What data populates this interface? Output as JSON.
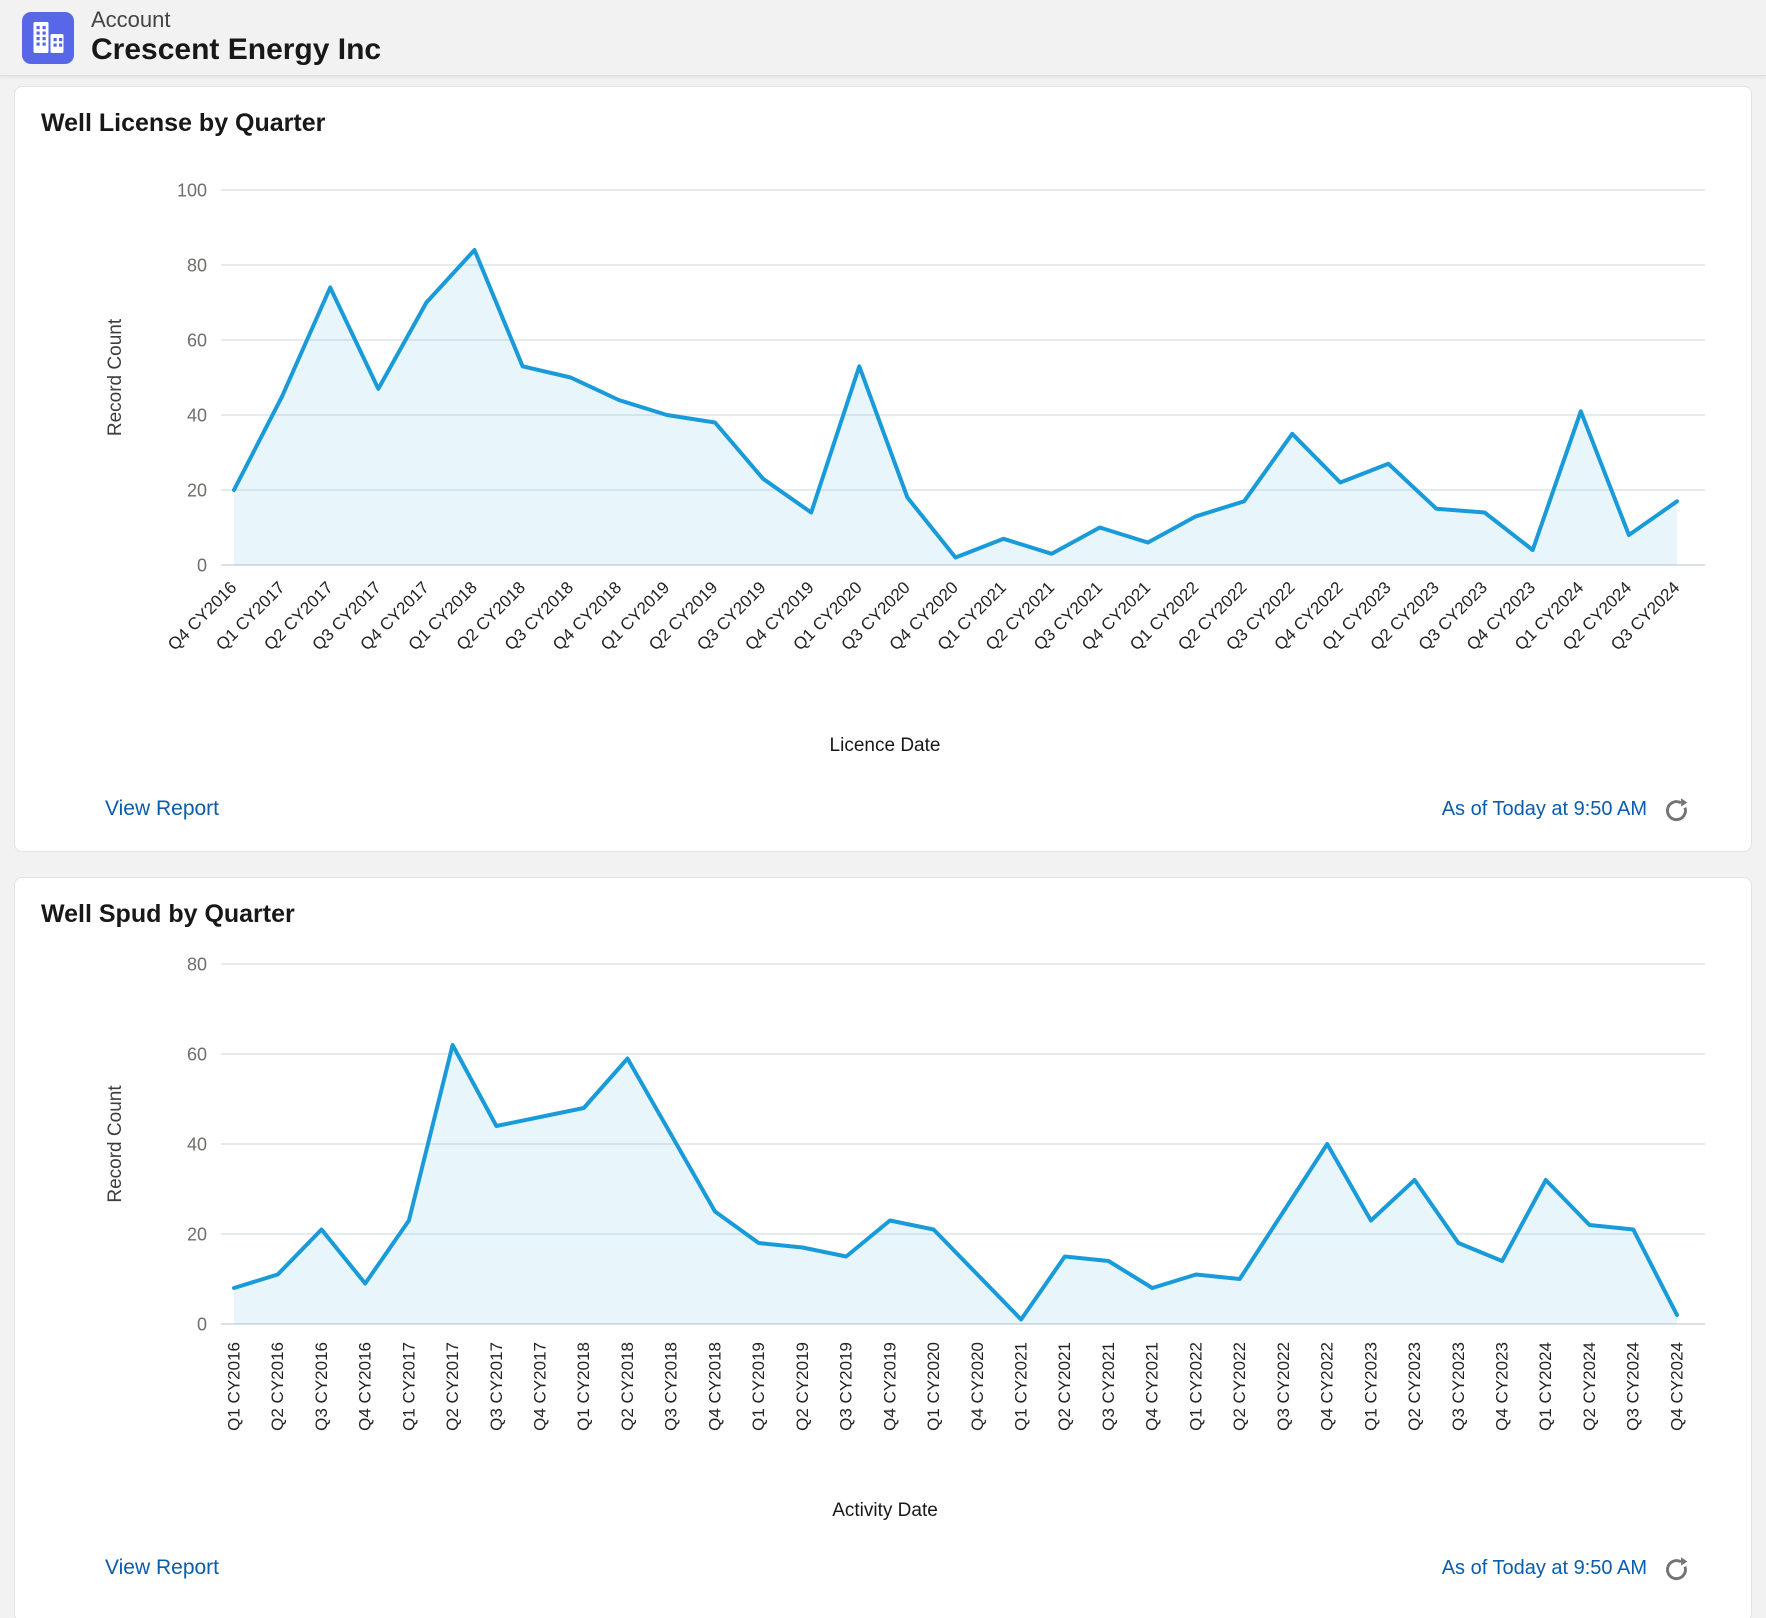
{
  "header": {
    "entity_label": "Account",
    "record_name": "Crescent Energy Inc",
    "icon": "building-icon",
    "icon_color": "#5867e8"
  },
  "cards": [
    {
      "view_report_label": "View Report",
      "as_of_text": "As of Today at 9:50 AM",
      "refresh_icon": "refresh-icon"
    },
    {
      "view_report_label": "View Report",
      "as_of_text": "As of Today at 9:50 AM",
      "refresh_icon": "refresh-icon"
    }
  ],
  "colors": {
    "line": "#1a9bd9",
    "fill": "rgba(26,155,217,0.10)",
    "link": "#0b5cab",
    "grid": "#e7ebee",
    "baseline": "#d9e1e7"
  },
  "chart_data": [
    {
      "type": "area",
      "title": "Well License by Quarter",
      "ylabel": "Record Count",
      "xlabel": "Licence Date",
      "ylim": [
        0,
        100
      ],
      "yticks": [
        0,
        20,
        40,
        60,
        80,
        100
      ],
      "grid": true,
      "legend": false,
      "x_label_rotation": -45,
      "line_color": "#1a9bd9",
      "fill_color": "rgba(26,155,217,0.10)",
      "x": [
        "Q4 CY2016",
        "Q1 CY2017",
        "Q2 CY2017",
        "Q3 CY2017",
        "Q4 CY2017",
        "Q1 CY2018",
        "Q2 CY2018",
        "Q3 CY2018",
        "Q4 CY2018",
        "Q1 CY2019",
        "Q2 CY2019",
        "Q3 CY2019",
        "Q4 CY2019",
        "Q1 CY2020",
        "Q3 CY2020",
        "Q4 CY2020",
        "Q1 CY2021",
        "Q2 CY2021",
        "Q3 CY2021",
        "Q4 CY2021",
        "Q1 CY2022",
        "Q2 CY2022",
        "Q3 CY2022",
        "Q4 CY2022",
        "Q1 CY2023",
        "Q2 CY2023",
        "Q3 CY2023",
        "Q4 CY2023",
        "Q1 CY2024",
        "Q2 CY2024",
        "Q3 CY2024"
      ],
      "values": [
        20,
        45,
        74,
        47,
        70,
        84,
        53,
        50,
        44,
        40,
        38,
        23,
        14,
        53,
        18,
        2,
        7,
        3,
        10,
        6,
        13,
        17,
        35,
        22,
        27,
        15,
        14,
        4,
        41,
        8,
        17
      ]
    },
    {
      "type": "area",
      "title": "Well Spud by Quarter",
      "ylabel": "Record Count",
      "xlabel": "Activity Date",
      "ylim": [
        0,
        80
      ],
      "yticks": [
        0,
        20,
        40,
        60,
        80
      ],
      "grid": true,
      "legend": false,
      "x_label_rotation": -90,
      "line_color": "#1a9bd9",
      "fill_color": "rgba(26,155,217,0.10)",
      "x": [
        "Q1 CY2016",
        "Q2 CY2016",
        "Q3 CY2016",
        "Q4 CY2016",
        "Q1 CY2017",
        "Q2 CY2017",
        "Q3 CY2017",
        "Q4 CY2017",
        "Q1 CY2018",
        "Q2 CY2018",
        "Q3 CY2018",
        "Q4 CY2018",
        "Q1 CY2019",
        "Q2 CY2019",
        "Q3 CY2019",
        "Q4 CY2019",
        "Q1 CY2020",
        "Q4 CY2020",
        "Q1 CY2021",
        "Q2 CY2021",
        "Q3 CY2021",
        "Q4 CY2021",
        "Q1 CY2022",
        "Q2 CY2022",
        "Q3 CY2022",
        "Q4 CY2022",
        "Q1 CY2023",
        "Q2 CY2023",
        "Q3 CY2023",
        "Q4 CY2023",
        "Q1 CY2024",
        "Q2 CY2024",
        "Q3 CY2024",
        "Q4 CY2024"
      ],
      "values": [
        8,
        11,
        21,
        9,
        23,
        62,
        44,
        46,
        48,
        59,
        42,
        25,
        18,
        17,
        15,
        23,
        21,
        11,
        1,
        15,
        14,
        8,
        11,
        10,
        25,
        40,
        23,
        32,
        18,
        14,
        32,
        22,
        21,
        2
      ]
    }
  ]
}
